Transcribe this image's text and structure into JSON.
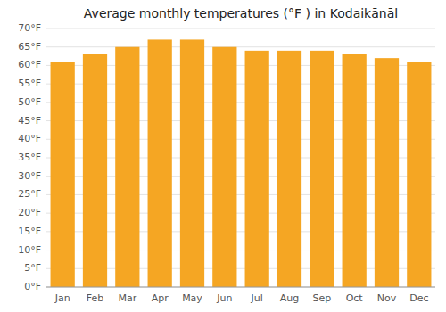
{
  "chart_data": {
    "type": "bar",
    "title": "Average monthly temperatures (°F ) in Kodaikānāl",
    "categories": [
      "Jan",
      "Feb",
      "Mar",
      "Apr",
      "May",
      "Jun",
      "Jul",
      "Aug",
      "Sep",
      "Oct",
      "Nov",
      "Dec"
    ],
    "values": [
      61,
      63,
      65,
      67,
      67,
      65,
      64,
      64,
      64,
      63,
      62,
      61
    ],
    "color": "#f5a623",
    "ylim": [
      0,
      70
    ],
    "yticks": [
      {
        "value": 0,
        "label": "0°F"
      },
      {
        "value": 5,
        "label": "5°F"
      },
      {
        "value": 10,
        "label": "10°F"
      },
      {
        "value": 15,
        "label": "15°F"
      },
      {
        "value": 20,
        "label": "20°F"
      },
      {
        "value": 25,
        "label": "25°F"
      },
      {
        "value": 30,
        "label": "30°F"
      },
      {
        "value": 35,
        "label": "35°F"
      },
      {
        "value": 40,
        "label": "40°F"
      },
      {
        "value": 45,
        "label": "45°F"
      },
      {
        "value": 50,
        "label": "50°F"
      },
      {
        "value": 55,
        "label": "55°F"
      },
      {
        "value": 60,
        "label": "60°F"
      },
      {
        "value": 65,
        "label": "65°F"
      },
      {
        "value": 70,
        "label": "70°F"
      }
    ],
    "grid": true
  }
}
